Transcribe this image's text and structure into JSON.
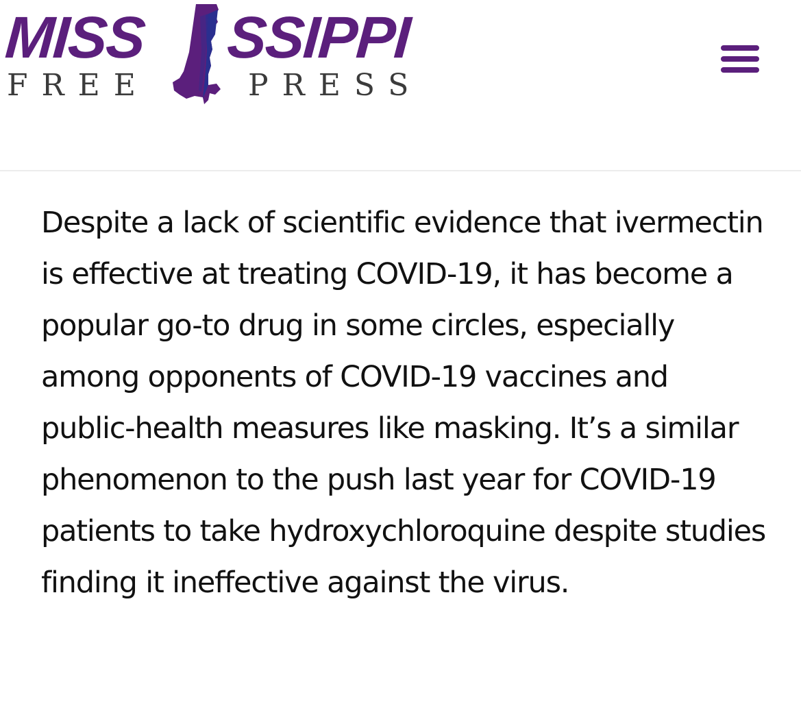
{
  "header": {
    "logo": {
      "word_left": "MISS",
      "word_right": "SSIPPI",
      "sub_left": "FREE",
      "sub_right": "PRESS",
      "icon": "mississippi-state-icon"
    },
    "menu_icon": "hamburger-menu-icon"
  },
  "article": {
    "paragraph": "Despite a lack of scientific evidence that ivermectin is effective at treating COVID-19, it has become a popular go-to drug in some circles, especially among opponents of COVID-19 vaccines and public-health measures like masking. It’s a similar phenomenon to the push last year for COVID-19 patients to take hydroxychloroquine despite studies finding it ineffective against the virus."
  },
  "colors": {
    "brand_purple": "#5b1f7c",
    "brand_navy": "#2a2f8f",
    "text": "#111111",
    "header_border": "#ececec"
  }
}
